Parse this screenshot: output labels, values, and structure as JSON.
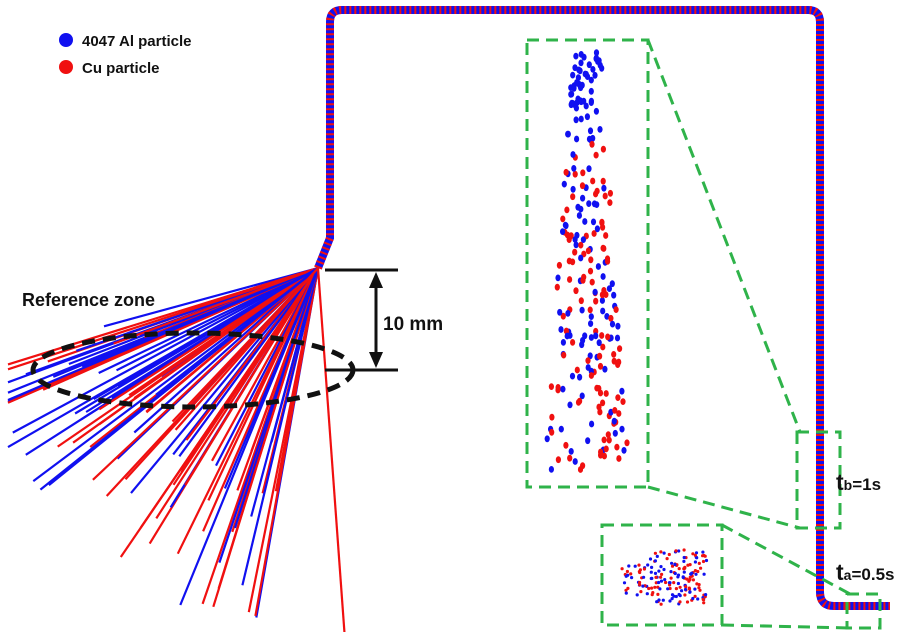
{
  "legend": {
    "items": [
      {
        "label": "4047 Al particle",
        "color": "#1010f0"
      },
      {
        "label": "Cu particle",
        "color": "#f01010"
      }
    ]
  },
  "annotations": {
    "reference_zone": "Reference zone",
    "distance": "10 mm",
    "time_b": {
      "symbol": "t",
      "subscript": "b",
      "value": "=1s"
    },
    "time_a": {
      "symbol": "t",
      "subscript": "a",
      "value": "=0.5s"
    }
  }
}
